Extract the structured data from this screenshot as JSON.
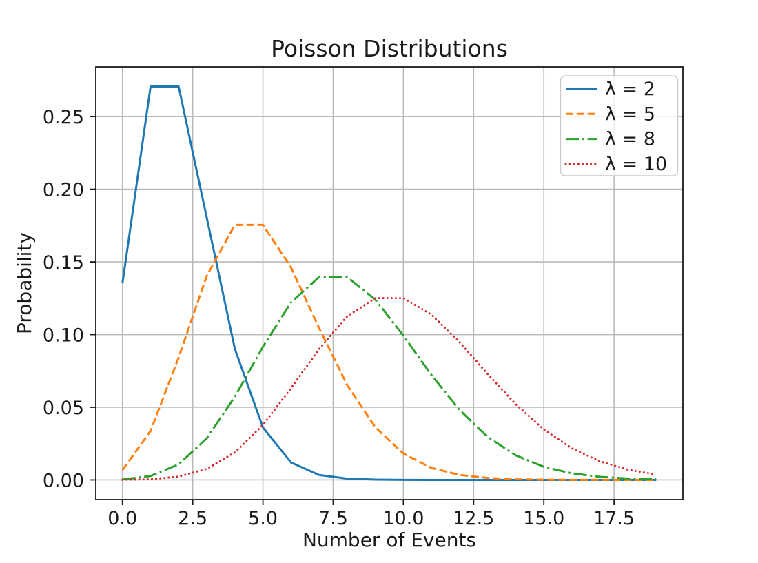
{
  "figure": {
    "background": "#ffffff"
  },
  "chart_data": {
    "type": "line",
    "title": "Poisson Distributions",
    "xlabel": "Number of Events",
    "ylabel": "Probability",
    "grid": true,
    "legend_position": "upper right",
    "xlim": [
      -0.95,
      19.95
    ],
    "ylim": [
      -0.0135335,
      0.2842047
    ],
    "xticks": [
      0.0,
      2.5,
      5.0,
      7.5,
      10.0,
      12.5,
      15.0,
      17.5
    ],
    "xtick_labels": [
      "0.0",
      "2.5",
      "5.0",
      "7.5",
      "10.0",
      "12.5",
      "15.0",
      "17.5"
    ],
    "yticks": [
      0.0,
      0.05,
      0.1,
      0.15,
      0.2,
      0.25
    ],
    "ytick_labels": [
      "0.00",
      "0.05",
      "0.10",
      "0.15",
      "0.20",
      "0.25"
    ],
    "x": [
      0,
      1,
      2,
      3,
      4,
      5,
      6,
      7,
      8,
      9,
      10,
      11,
      12,
      13,
      14,
      15,
      16,
      17,
      18,
      19
    ],
    "series": [
      {
        "name": "λ = 2",
        "key": "lambda-2",
        "color": "#1f77b4",
        "linestyle": "solid",
        "values": [
          0.135335,
          0.270671,
          0.270671,
          0.180447,
          0.090224,
          0.036089,
          0.01203,
          0.003437,
          0.000859,
          0.000191,
          3.8e-05,
          7e-06,
          1e-06,
          0.0,
          0.0,
          0.0,
          0.0,
          0.0,
          0.0,
          0.0
        ]
      },
      {
        "name": "λ = 5",
        "key": "lambda-5",
        "color": "#ff7f0e",
        "linestyle": "dashed",
        "values": [
          0.006738,
          0.03369,
          0.084224,
          0.140374,
          0.175467,
          0.175467,
          0.146223,
          0.104445,
          0.065278,
          0.036266,
          0.018133,
          0.008242,
          0.003434,
          0.001321,
          0.000472,
          0.000157,
          4.9e-05,
          1.4e-05,
          4e-06,
          1e-06
        ]
      },
      {
        "name": "λ = 8",
        "key": "lambda-8",
        "color": "#2ca02c",
        "linestyle": "dashdot",
        "values": [
          0.000335,
          0.002684,
          0.010735,
          0.028626,
          0.057252,
          0.091604,
          0.122138,
          0.139587,
          0.139587,
          0.124077,
          0.099262,
          0.07219,
          0.048127,
          0.029616,
          0.016924,
          0.009026,
          0.004513,
          0.002124,
          0.000944,
          0.000397
        ]
      },
      {
        "name": "λ = 10",
        "key": "lambda-10",
        "color": "#d62728",
        "linestyle": "dotted",
        "values": [
          4.5e-05,
          0.000454,
          0.00227,
          0.007567,
          0.018917,
          0.037833,
          0.063055,
          0.090079,
          0.112599,
          0.12511,
          0.12511,
          0.113736,
          0.09478,
          0.072908,
          0.052077,
          0.034718,
          0.021699,
          0.012764,
          0.007091,
          0.003732
        ]
      }
    ]
  }
}
